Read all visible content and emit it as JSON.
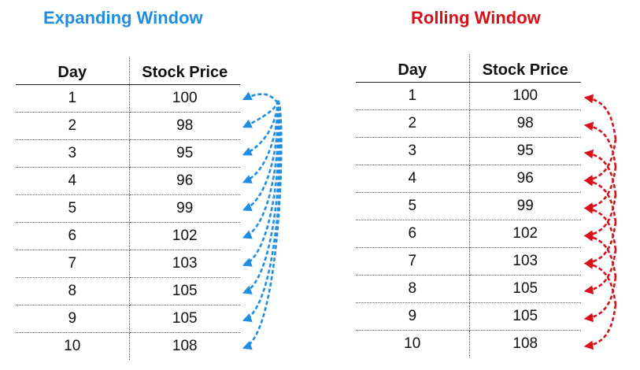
{
  "left": {
    "title": "Expanding Window",
    "color": "#1f8de0",
    "headers": {
      "day": "Day",
      "price": "Stock Price"
    },
    "rows": [
      {
        "day": "1",
        "price": "100"
      },
      {
        "day": "2",
        "price": "98"
      },
      {
        "day": "3",
        "price": "95"
      },
      {
        "day": "4",
        "price": "96"
      },
      {
        "day": "5",
        "price": "99"
      },
      {
        "day": "6",
        "price": "102"
      },
      {
        "day": "7",
        "price": "103"
      },
      {
        "day": "8",
        "price": "105"
      },
      {
        "day": "9",
        "price": "105"
      },
      {
        "day": "10",
        "price": "108"
      }
    ]
  },
  "right": {
    "title": "Rolling Window",
    "color": "#d8101a",
    "headers": {
      "day": "Day",
      "price": "Stock Price"
    },
    "rows": [
      {
        "day": "1",
        "price": "100"
      },
      {
        "day": "2",
        "price": "98"
      },
      {
        "day": "3",
        "price": "95"
      },
      {
        "day": "4",
        "price": "96"
      },
      {
        "day": "5",
        "price": "99"
      },
      {
        "day": "6",
        "price": "102"
      },
      {
        "day": "7",
        "price": "103"
      },
      {
        "day": "8",
        "price": "105"
      },
      {
        "day": "9",
        "price": "105"
      },
      {
        "day": "10",
        "price": "108"
      }
    ]
  }
}
